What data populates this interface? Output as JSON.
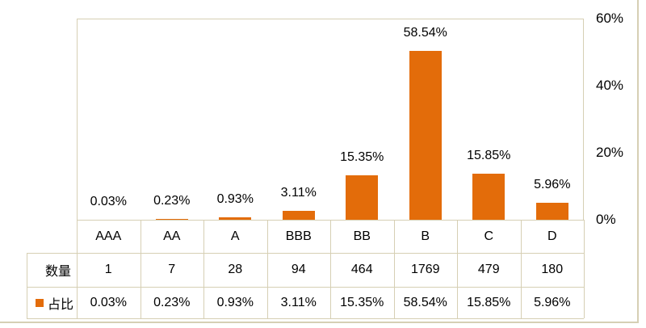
{
  "chart_data": {
    "type": "bar",
    "title": "",
    "categories": [
      "AAA",
      "AA",
      "A",
      "BBB",
      "BB",
      "B",
      "C",
      "D"
    ],
    "series": [
      {
        "name": "占比",
        "values": [
          0.03,
          0.23,
          0.93,
          3.11,
          15.35,
          58.54,
          15.85,
          5.96
        ],
        "labels": [
          "0.03%",
          "0.23%",
          "0.93%",
          "3.11%",
          "15.35%",
          "58.54%",
          "15.85%",
          "5.96%"
        ]
      }
    ],
    "xlabel": "",
    "ylabel": "",
    "y_axis": {
      "position": "right",
      "ticks_top_to_bottom": [
        "60%",
        "40%",
        "20%",
        "0%"
      ],
      "range_percent": [
        0,
        60
      ]
    },
    "gridlines": false,
    "legend": {
      "label": "占比",
      "position": "data-table-key"
    },
    "data_table": {
      "rows": [
        {
          "header": "数量",
          "has_legend_key": false,
          "cells": [
            "1",
            "7",
            "28",
            "94",
            "464",
            "1769",
            "479",
            "180"
          ]
        },
        {
          "header": "占比",
          "has_legend_key": true,
          "cells": [
            "0.03%",
            "0.23%",
            "0.93%",
            "3.11%",
            "15.35%",
            "58.54%",
            "15.85%",
            "5.96%"
          ]
        }
      ]
    }
  },
  "colors": {
    "bar": "#E36C0A",
    "border": "#D6CFB4",
    "text": "#000000",
    "background": "#FFFFFF"
  }
}
